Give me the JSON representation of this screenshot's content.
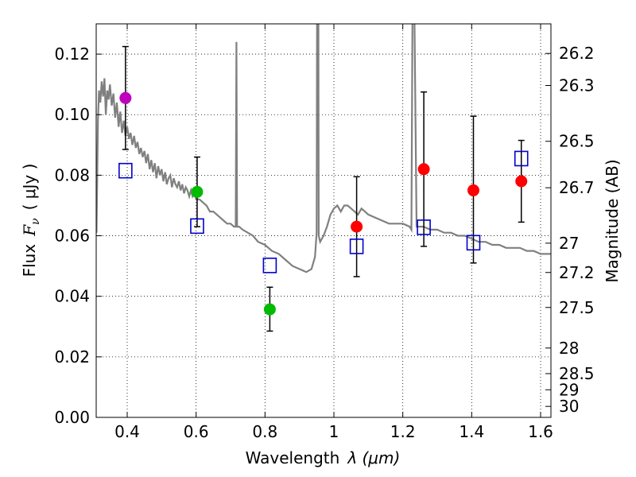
{
  "chart_data": {
    "type": "scatter",
    "xlabel": "Wavelength",
    "xlabel_math": "λ (μm)",
    "ylabel": "Flux",
    "ylabel_math": "F",
    "ylabel_sub": "ν",
    "ylabel_units": "( μJy )",
    "y2label": "Magnitude (AB)",
    "xlim": [
      0.31,
      1.63
    ],
    "ylim": [
      0.0,
      0.13
    ],
    "grid": true,
    "x_ticks": [
      0.4,
      0.6,
      0.8,
      1.0,
      1.2,
      1.4,
      1.6
    ],
    "x_tick_labels": [
      "0.4",
      "0.6",
      "0.8",
      "1",
      "1.2",
      "1.4",
      "1.6"
    ],
    "y_ticks": [
      0.0,
      0.02,
      0.04,
      0.06,
      0.08,
      0.1,
      0.12
    ],
    "y_tick_labels": [
      "0.00",
      "0.02",
      "0.04",
      "0.06",
      "0.08",
      "0.10",
      "0.12"
    ],
    "y2_ticks": [
      26.2,
      26.3,
      26.5,
      26.7,
      27,
      27.2,
      27.5,
      28,
      28.5,
      29,
      30
    ],
    "y2_tick_labels": [
      "26.2",
      "26.3",
      "26.5",
      "26.7",
      "27",
      "27.2",
      "27.5",
      "28",
      "28.5",
      "29",
      "30"
    ],
    "observed_points": [
      {
        "x": 0.395,
        "y": 0.1055,
        "err_low": 0.0885,
        "err_high": 0.1225,
        "color": "#bf00bf"
      },
      {
        "x": 0.603,
        "y": 0.0745,
        "err_low": 0.063,
        "err_high": 0.086,
        "color": "#00bb00"
      },
      {
        "x": 0.814,
        "y": 0.0357,
        "err_low": 0.0285,
        "err_high": 0.043,
        "color": "#00bb00"
      },
      {
        "x": 1.066,
        "y": 0.063,
        "err_low": 0.0465,
        "err_high": 0.0795,
        "color": "#ff0000"
      },
      {
        "x": 1.261,
        "y": 0.082,
        "err_low": 0.0565,
        "err_high": 0.1075,
        "color": "#ff0000"
      },
      {
        "x": 1.405,
        "y": 0.075,
        "err_low": 0.051,
        "err_high": 0.0995,
        "color": "#ff0000"
      },
      {
        "x": 1.544,
        "y": 0.078,
        "err_low": 0.0645,
        "err_high": 0.0915,
        "color": "#ff0000"
      }
    ],
    "model_points": [
      {
        "x": 0.395,
        "y": 0.0815
      },
      {
        "x": 0.603,
        "y": 0.0632
      },
      {
        "x": 0.814,
        "y": 0.0502
      },
      {
        "x": 1.066,
        "y": 0.0565
      },
      {
        "x": 1.261,
        "y": 0.0628
      },
      {
        "x": 1.405,
        "y": 0.0577
      },
      {
        "x": 1.544,
        "y": 0.0855
      }
    ],
    "model_color": "#0000cc",
    "spectrum_color": "#808080",
    "spectrum": [
      [
        0.311,
        0.061
      ],
      [
        0.315,
        0.098
      ],
      [
        0.318,
        0.108
      ],
      [
        0.322,
        0.104
      ],
      [
        0.326,
        0.111
      ],
      [
        0.33,
        0.106
      ],
      [
        0.334,
        0.112
      ],
      [
        0.338,
        0.1
      ],
      [
        0.342,
        0.108
      ],
      [
        0.346,
        0.105
      ],
      [
        0.35,
        0.11
      ],
      [
        0.355,
        0.103
      ],
      [
        0.36,
        0.107
      ],
      [
        0.365,
        0.099
      ],
      [
        0.37,
        0.104
      ],
      [
        0.375,
        0.096
      ],
      [
        0.38,
        0.101
      ],
      [
        0.385,
        0.094
      ],
      [
        0.39,
        0.098
      ],
      [
        0.395,
        0.093
      ],
      [
        0.4,
        0.096
      ],
      [
        0.405,
        0.092
      ],
      [
        0.41,
        0.094
      ],
      [
        0.415,
        0.09
      ],
      [
        0.42,
        0.093
      ],
      [
        0.425,
        0.089
      ],
      [
        0.43,
        0.091
      ],
      [
        0.435,
        0.087
      ],
      [
        0.44,
        0.089
      ],
      [
        0.445,
        0.086
      ],
      [
        0.45,
        0.088
      ],
      [
        0.455,
        0.084
      ],
      [
        0.46,
        0.087
      ],
      [
        0.465,
        0.082
      ],
      [
        0.47,
        0.085
      ],
      [
        0.475,
        0.081
      ],
      [
        0.48,
        0.084
      ],
      [
        0.485,
        0.079
      ],
      [
        0.49,
        0.083
      ],
      [
        0.495,
        0.08
      ],
      [
        0.5,
        0.082
      ],
      [
        0.505,
        0.078
      ],
      [
        0.51,
        0.081
      ],
      [
        0.515,
        0.077
      ],
      [
        0.52,
        0.079
      ],
      [
        0.525,
        0.08
      ],
      [
        0.53,
        0.076
      ],
      [
        0.535,
        0.079
      ],
      [
        0.54,
        0.077
      ],
      [
        0.545,
        0.076
      ],
      [
        0.55,
        0.078
      ],
      [
        0.555,
        0.075
      ],
      [
        0.56,
        0.077
      ],
      [
        0.565,
        0.074
      ],
      [
        0.57,
        0.076
      ],
      [
        0.575,
        0.075
      ],
      [
        0.58,
        0.073
      ],
      [
        0.585,
        0.075
      ],
      [
        0.59,
        0.073
      ],
      [
        0.595,
        0.074
      ],
      [
        0.6,
        0.072
      ],
      [
        0.61,
        0.072
      ],
      [
        0.62,
        0.071
      ],
      [
        0.63,
        0.07
      ],
      [
        0.64,
        0.068
      ],
      [
        0.65,
        0.068
      ],
      [
        0.66,
        0.067
      ],
      [
        0.67,
        0.066
      ],
      [
        0.68,
        0.065
      ],
      [
        0.69,
        0.064
      ],
      [
        0.7,
        0.064
      ],
      [
        0.71,
        0.063
      ],
      [
        0.715,
        0.063
      ],
      [
        0.717,
        0.124
      ],
      [
        0.719,
        0.063
      ],
      [
        0.725,
        0.063
      ],
      [
        0.735,
        0.062
      ],
      [
        0.75,
        0.061
      ],
      [
        0.765,
        0.06
      ],
      [
        0.78,
        0.058
      ],
      [
        0.8,
        0.057
      ],
      [
        0.82,
        0.055
      ],
      [
        0.84,
        0.054
      ],
      [
        0.86,
        0.052
      ],
      [
        0.88,
        0.05
      ],
      [
        0.9,
        0.049
      ],
      [
        0.92,
        0.048
      ],
      [
        0.935,
        0.049
      ],
      [
        0.945,
        0.053
      ],
      [
        0.95,
        0.061
      ],
      [
        0.951,
        0.131
      ],
      [
        0.955,
        0.131
      ],
      [
        0.956,
        0.06
      ],
      [
        0.96,
        0.058
      ],
      [
        0.97,
        0.06
      ],
      [
        0.98,
        0.063
      ],
      [
        0.99,
        0.067
      ],
      [
        1.0,
        0.069
      ],
      [
        1.01,
        0.07
      ],
      [
        1.02,
        0.068
      ],
      [
        1.03,
        0.07
      ],
      [
        1.04,
        0.07
      ],
      [
        1.05,
        0.069
      ],
      [
        1.06,
        0.068
      ],
      [
        1.07,
        0.067
      ],
      [
        1.08,
        0.069
      ],
      [
        1.09,
        0.068
      ],
      [
        1.1,
        0.067
      ],
      [
        1.12,
        0.066
      ],
      [
        1.14,
        0.065
      ],
      [
        1.16,
        0.064
      ],
      [
        1.18,
        0.064
      ],
      [
        1.2,
        0.064
      ],
      [
        1.22,
        0.063
      ],
      [
        1.225,
        0.062
      ],
      [
        1.228,
        0.131
      ],
      [
        1.234,
        0.131
      ],
      [
        1.24,
        0.063
      ],
      [
        1.26,
        0.063
      ],
      [
        1.28,
        0.062
      ],
      [
        1.3,
        0.062
      ],
      [
        1.32,
        0.061
      ],
      [
        1.34,
        0.061
      ],
      [
        1.36,
        0.06
      ],
      [
        1.38,
        0.06
      ],
      [
        1.4,
        0.059
      ],
      [
        1.42,
        0.058
      ],
      [
        1.44,
        0.058
      ],
      [
        1.46,
        0.057
      ],
      [
        1.48,
        0.057
      ],
      [
        1.5,
        0.056
      ],
      [
        1.52,
        0.056
      ],
      [
        1.54,
        0.056
      ],
      [
        1.56,
        0.055
      ],
      [
        1.58,
        0.055
      ],
      [
        1.6,
        0.054
      ],
      [
        1.63,
        0.054
      ]
    ]
  }
}
